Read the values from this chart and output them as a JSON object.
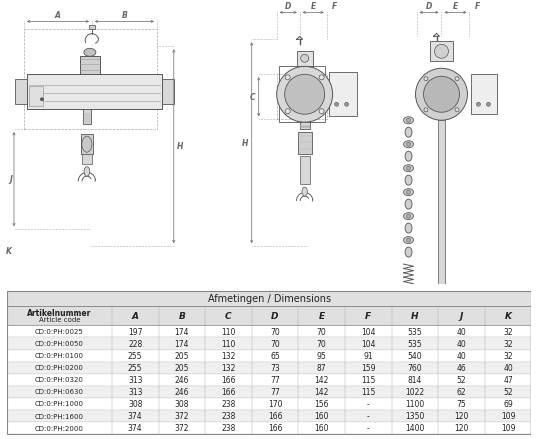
{
  "title": "Afmetingen / Dimensions",
  "header_row1": "Artikelnummer",
  "header_row2": "Article code",
  "columns": [
    "A",
    "B",
    "C",
    "D",
    "E",
    "F",
    "H",
    "J",
    "K"
  ],
  "rows": [
    [
      "CD:0:PH:0025",
      "197",
      "174",
      "110",
      "70",
      "70",
      "104",
      "535",
      "40",
      "32"
    ],
    [
      "CD:0:PH:0050",
      "228",
      "174",
      "110",
      "70",
      "70",
      "104",
      "535",
      "40",
      "32"
    ],
    [
      "CD:0:PH:0100",
      "255",
      "205",
      "132",
      "65",
      "95",
      "91",
      "540",
      "40",
      "32"
    ],
    [
      "CD:0:PH:0200",
      "255",
      "205",
      "132",
      "73",
      "87",
      "159",
      "760",
      "46",
      "40"
    ],
    [
      "CD:0:PH:0320",
      "313",
      "246",
      "166",
      "77",
      "142",
      "115",
      "814",
      "52",
      "47"
    ],
    [
      "CD:0:PH:0630",
      "313",
      "246",
      "166",
      "77",
      "142",
      "115",
      "1022",
      "62",
      "52"
    ],
    [
      "CD:0:PH:1000",
      "308",
      "308",
      "238",
      "170",
      "156",
      "-",
      "1100",
      "75",
      "69"
    ],
    [
      "CD:0:PH:1600",
      "374",
      "372",
      "238",
      "166",
      "160",
      "-",
      "1350",
      "120",
      "109"
    ],
    [
      "CD:0:PH:2000",
      "374",
      "372",
      "238",
      "166",
      "160",
      "-",
      "1400",
      "120",
      "109"
    ]
  ],
  "header_bg": "#e0e0e0",
  "title_bg": "#e0e0e0",
  "row_bg_odd": "#ffffff",
  "row_bg_even": "#efefef",
  "border_color": "#aaaaaa",
  "text_color": "#222222",
  "title_color": "#222222",
  "fig_bg": "#ffffff",
  "line_color": "#555555",
  "dim_color": "#666666"
}
